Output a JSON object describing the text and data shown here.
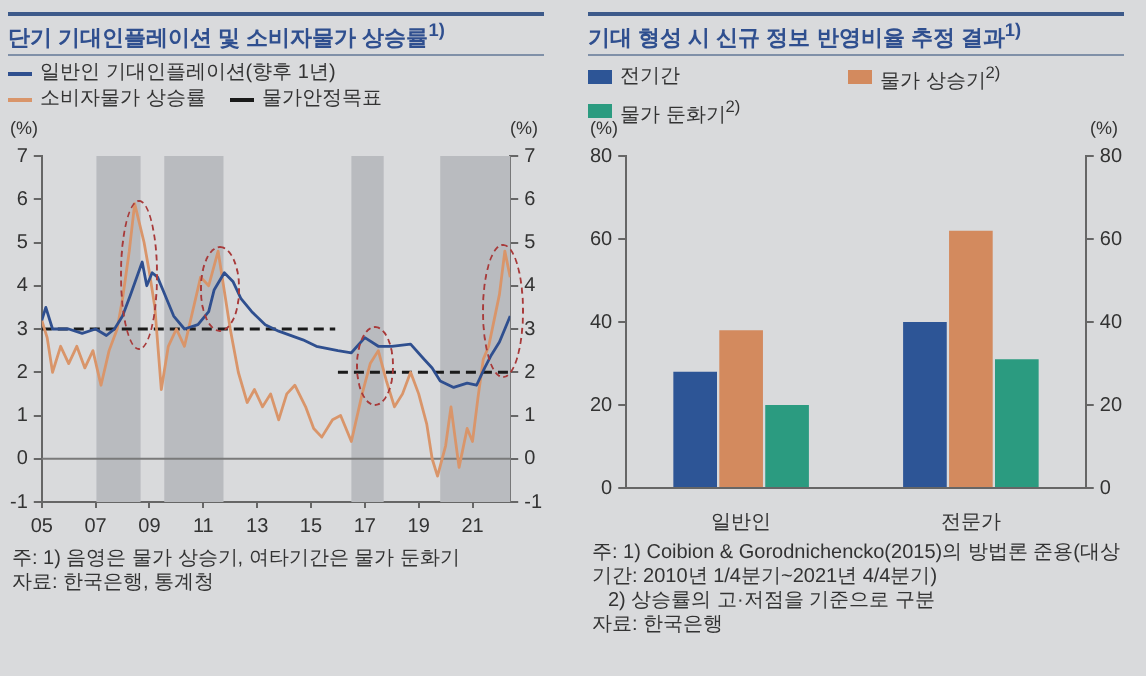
{
  "chart_data": [
    {
      "type": "line",
      "title": "단기 기대인플레이션 및 소비자물가 상승률$^{1)}$",
      "ylabel": "(%)",
      "y2label": "(%)",
      "series": [
        {
          "name": "일반인 기대인플레이션(향후 1년)",
          "color": "#2f4f8f",
          "x": [
            5.0,
            5.15,
            5.4,
            6.0,
            6.5,
            7.0,
            7.4,
            7.7,
            8.0,
            8.3,
            8.73,
            8.9,
            9.1,
            9.3,
            9.5,
            9.9,
            10.3,
            10.8,
            11.2,
            11.4,
            11.78,
            12.1,
            12.4,
            12.8,
            13.3,
            13.8,
            14.7,
            15.2,
            16.0,
            16.5,
            17.0,
            17.5,
            18.0,
            18.7,
            19.2,
            19.5,
            19.8,
            20.3,
            20.8,
            21.15,
            21.45,
            21.7,
            22.0,
            22.4
          ],
          "values": [
            3.2,
            3.5,
            3.0,
            3.0,
            2.9,
            3.0,
            2.85,
            3.0,
            3.3,
            3.8,
            4.55,
            4.0,
            4.3,
            4.2,
            3.9,
            3.3,
            3.0,
            3.1,
            3.4,
            3.9,
            4.3,
            4.1,
            3.7,
            3.4,
            3.1,
            2.95,
            2.75,
            2.6,
            2.5,
            2.45,
            2.8,
            2.6,
            2.6,
            2.65,
            2.3,
            2.1,
            1.8,
            1.65,
            1.75,
            1.7,
            2.1,
            2.4,
            2.7,
            3.3
          ]
        },
        {
          "name": "소비자물가 상승률",
          "color": "#d9956a",
          "x": [
            5.0,
            5.2,
            5.4,
            5.7,
            6.0,
            6.3,
            6.6,
            6.9,
            7.2,
            7.5,
            7.8,
            8.0,
            8.25,
            8.45,
            8.8,
            9.0,
            9.2,
            9.44,
            9.7,
            10.0,
            10.3,
            10.6,
            10.9,
            11.2,
            11.55,
            11.8,
            12.0,
            12.3,
            12.63,
            12.9,
            13.2,
            13.5,
            13.8,
            14.1,
            14.4,
            14.8,
            15.1,
            15.4,
            15.8,
            16.1,
            16.5,
            16.9,
            17.2,
            17.5,
            17.8,
            18.1,
            18.4,
            18.7,
            19.0,
            19.3,
            19.5,
            19.7,
            20.0,
            20.2,
            20.5,
            20.8,
            21.0,
            21.2,
            21.4,
            21.6,
            21.8,
            22.0,
            22.2,
            22.4
          ],
          "values": [
            3.2,
            2.8,
            2.0,
            2.6,
            2.2,
            2.6,
            2.1,
            2.5,
            1.7,
            2.5,
            3.0,
            3.7,
            4.8,
            5.9,
            5.0,
            4.3,
            3.5,
            1.6,
            2.6,
            3.0,
            2.6,
            3.4,
            4.2,
            4.0,
            4.8,
            3.8,
            3.0,
            2.0,
            1.3,
            1.6,
            1.2,
            1.5,
            0.9,
            1.5,
            1.7,
            1.2,
            0.7,
            0.5,
            0.9,
            1.0,
            0.4,
            1.5,
            2.2,
            2.5,
            1.8,
            1.2,
            1.5,
            2.0,
            1.5,
            0.8,
            0.0,
            -0.4,
            0.3,
            1.2,
            -0.2,
            0.7,
            0.4,
            1.4,
            2.3,
            2.6,
            3.2,
            3.8,
            4.8,
            4.2
          ]
        },
        {
          "name": "물가안정목표",
          "color": "#1a1a1a",
          "line_style": "dashed",
          "x": [
            5.0,
            15.9,
            15.95,
            16.0,
            22.4
          ],
          "values": [
            3,
            3,
            null,
            2,
            2
          ]
        }
      ],
      "xlim": [
        5,
        22.4
      ],
      "xticks": [
        {
          "value": 5,
          "label": "05"
        },
        {
          "value": 7,
          "label": "07"
        },
        {
          "value": 9,
          "label": "09"
        },
        11,
        13,
        15,
        17,
        19,
        21
      ],
      "ylim": [
        -1,
        7
      ],
      "yticks": [
        -1,
        0,
        1,
        2,
        3,
        4,
        5,
        6,
        7
      ],
      "y2lim": [
        -1,
        7
      ],
      "y2ticks": [
        -1,
        0,
        1,
        2,
        3,
        4,
        5,
        6,
        7
      ],
      "bands": [
        {
          "axis": "x",
          "from": 7.03,
          "to": 8.67,
          "color": "#b9bbbf"
        },
        {
          "axis": "x",
          "from": 9.55,
          "to": 11.75,
          "color": "#b9bbbf"
        },
        {
          "axis": "x",
          "from": 16.5,
          "to": 17.7,
          "color": "#b9bbbf"
        },
        {
          "axis": "x",
          "from": 19.8,
          "to": 22.4,
          "color": "#b9bbbf"
        }
      ],
      "ref_lines": [
        {
          "axis": "y",
          "value": 0,
          "color": "#7a7a7a"
        }
      ],
      "legend": "top",
      "annotations": [
        "주: 1) 음영은 물가 상승기, 여타기간은 물가 둔화기",
        "자료: 한국은행, 통계청"
      ]
    },
    {
      "type": "bar",
      "title": "기대 형성 시 신규 정보 반영비율 추정 결과$^{1)}$",
      "ylabel": "(%)",
      "y2label": "(%)",
      "categories": [
        "일반인",
        "전문가"
      ],
      "series": [
        {
          "name": "전기간",
          "color": "#2d5596",
          "values": [
            28,
            40
          ]
        },
        {
          "name": "물가 상승기$^{2)}$",
          "color": "#d38a5e",
          "values": [
            38,
            62
          ]
        },
        {
          "name": "물가 둔화기$^{2)}$",
          "color": "#2b9b80",
          "values": [
            20,
            31
          ]
        }
      ],
      "ylim": [
        0,
        80
      ],
      "yticks": [
        0,
        20,
        40,
        60,
        80
      ],
      "y2lim": [
        0,
        80
      ],
      "y2ticks": [
        0,
        20,
        40,
        60,
        80
      ],
      "legend": "top",
      "annotations": [
        "주: 1) Coibion & Gorodnichencko(2015)의 방법론 준용(대상기간: 2010년 1/4분기~2021년 4/4분기)",
        "2) 상승률의 고·저점을 기준으로 구분",
        "자료: 한국은행"
      ]
    }
  ]
}
